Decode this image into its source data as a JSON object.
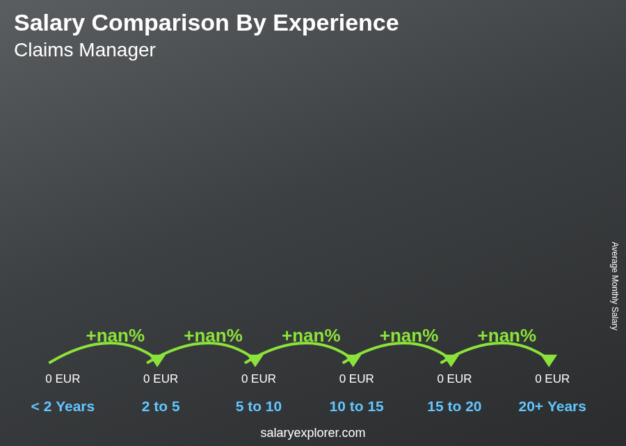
{
  "chart_data": {
    "type": "bar",
    "title": "Salary Comparison By Experience",
    "subtitle": "Claims Manager",
    "y_label": "Average Monthly Salary",
    "categories": [
      "< 2 Years",
      "2 to 5",
      "5 to 10",
      "10 to 15",
      "15 to 20",
      "20+ Years"
    ],
    "values": [
      0,
      0,
      0,
      0,
      0,
      0
    ],
    "value_labels": [
      "0 EUR",
      "0 EUR",
      "0 EUR",
      "0 EUR",
      "0 EUR",
      "0 EUR"
    ],
    "data_labels": true,
    "annotations": [
      "+nan%",
      "+nan%",
      "+nan%",
      "+nan%",
      "+nan%"
    ],
    "watermark": "salaryexplorer.com",
    "color": "#1fa9ec",
    "grid": false,
    "tick_labels": "x"
  }
}
